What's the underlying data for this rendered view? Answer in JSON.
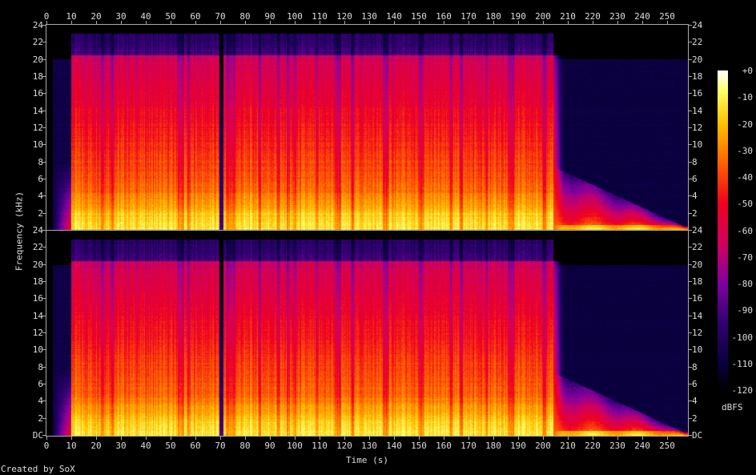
{
  "chart_data": {
    "type": "heatmap",
    "title": "",
    "xlabel": "Time (s)",
    "ylabel": "Frequency (kHz)",
    "x_range": [
      0,
      258
    ],
    "x_ticks": [
      0,
      10,
      20,
      30,
      40,
      50,
      60,
      70,
      80,
      90,
      100,
      110,
      120,
      130,
      140,
      150,
      160,
      170,
      180,
      190,
      200,
      210,
      220,
      230,
      240,
      250
    ],
    "y_range_khz": [
      0,
      24
    ],
    "channels": [
      {
        "y_tick_labels": [
          "24",
          "22",
          "20",
          "18",
          "16",
          "14",
          "12",
          "10",
          "8",
          "6",
          "4",
          "2"
        ]
      },
      {
        "y_tick_labels": [
          "24",
          "22",
          "20",
          "18",
          "16",
          "14",
          "12",
          "10",
          "8",
          "6",
          "4",
          "2",
          "DC"
        ]
      }
    ],
    "colorbar": {
      "label": "dBFS",
      "range": [
        -120,
        0
      ],
      "tick_labels": [
        "+0",
        "-10",
        "-20",
        "-30",
        "-40",
        "-50",
        "-60",
        "-70",
        "-80",
        "-90",
        "-100",
        "-110",
        "-120"
      ],
      "colors": [
        "#000000",
        "#0a0040",
        "#300070",
        "#8000a0",
        "#d00060",
        "#f00020",
        "#ff6000",
        "#ffc000",
        "#ffff60",
        "#ffffff"
      ]
    },
    "segments": [
      {
        "from_s": 2.5,
        "to_s": 10,
        "content": "quiet intro, up to 20 kHz"
      },
      {
        "from_s": 10,
        "to_s": 204,
        "content": "full music, cutoff ~20.5 kHz, sparse to 23 kHz"
      },
      {
        "from_s": 69.5,
        "to_s": 71,
        "content": "brief dip"
      },
      {
        "from_s": 208,
        "to_s": 257,
        "content": "quiet outro, content below ~6 kHz fading out"
      }
    ]
  },
  "footer": {
    "credit": "Created by SoX"
  }
}
